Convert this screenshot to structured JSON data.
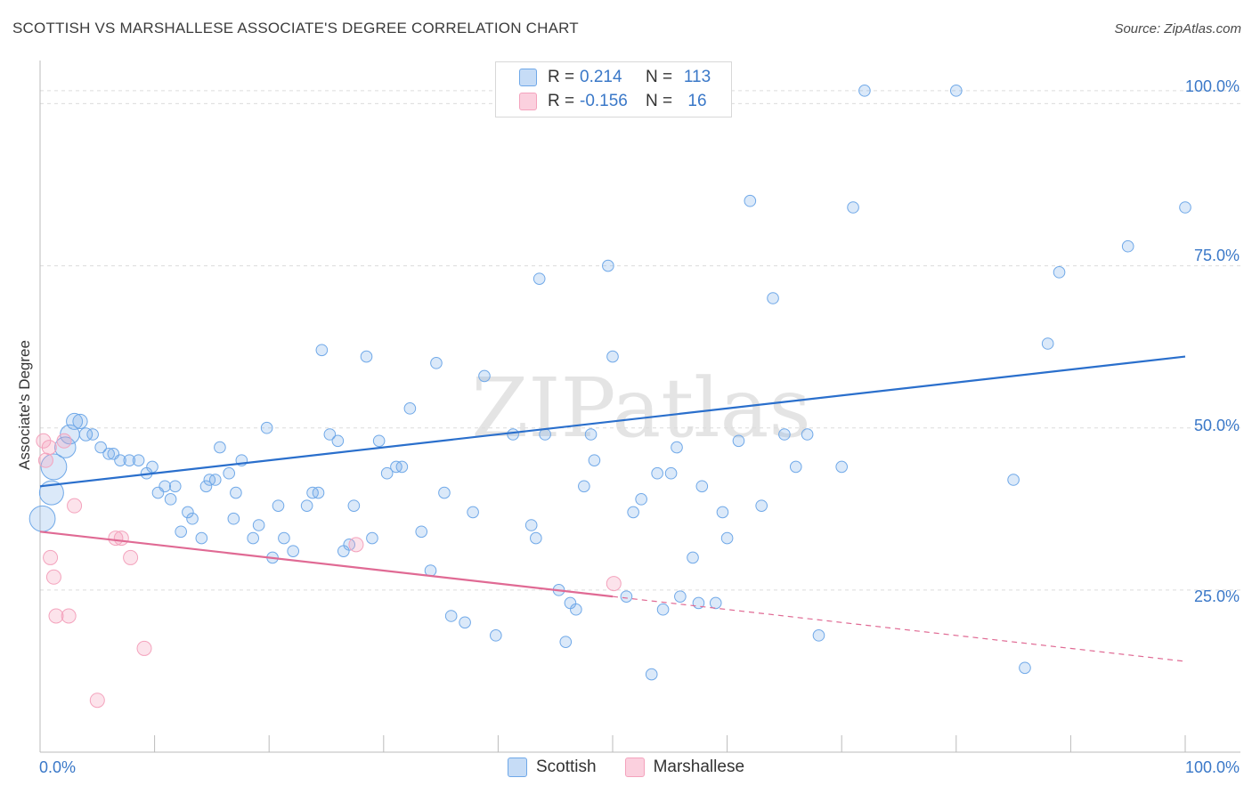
{
  "header": {
    "title": "SCOTTISH VS MARSHALLESE ASSOCIATE'S DEGREE CORRELATION CHART",
    "source": "Source: ZipAtlas.com"
  },
  "watermark": "ZIPatlas",
  "colors": {
    "scottish": "#6fa8e8",
    "scottish_line": "#2a6fcc",
    "marshallese": "#f4a3bd",
    "marshallese_line": "#e06a94",
    "tick_text": "#3a78c8"
  },
  "legend": {
    "rows": [
      {
        "r_label": "R =",
        "r_value": "0.214",
        "n_label": "N =",
        "n_value": "113"
      },
      {
        "r_label": "R =",
        "r_value": "-0.156",
        "n_label": "N =",
        "n_value": "16"
      }
    ]
  },
  "bottom_legend": [
    "Scottish",
    "Marshallese"
  ],
  "chart_data": {
    "type": "scatter",
    "title": "SCOTTISH VS MARSHALLESE ASSOCIATE'S DEGREE CORRELATION CHART",
    "ylabel": "Associate's Degree",
    "xlabel": "",
    "xlim": [
      0,
      100
    ],
    "ylim": [
      0,
      105
    ],
    "x_tick_labels": [
      "0.0%",
      "100.0%"
    ],
    "y_tick_labels": [
      "25.0%",
      "50.0%",
      "75.0%",
      "100.0%"
    ],
    "y_ticks": [
      25,
      50,
      75,
      100
    ],
    "grid": true,
    "legend_position": "top-center",
    "series": [
      {
        "name": "Scottish",
        "r": 0.214,
        "n": 113,
        "trend": {
          "x0": 0,
          "y0": 41,
          "x1": 100,
          "y1": 61
        },
        "points": [
          [
            0.2,
            36,
            1.6
          ],
          [
            1,
            40,
            1.5
          ],
          [
            1.2,
            44,
            1.6
          ],
          [
            2.2,
            47,
            1.3
          ],
          [
            2.6,
            49,
            1.2
          ],
          [
            3,
            51,
            1.0
          ],
          [
            3.5,
            51,
            0.9
          ],
          [
            4,
            49,
            0.8
          ],
          [
            4.6,
            49,
            0.7
          ],
          [
            5.3,
            47,
            0.7
          ],
          [
            6,
            46,
            0.7
          ],
          [
            6.4,
            46,
            0.7
          ],
          [
            7,
            45,
            0.7
          ],
          [
            7.8,
            45,
            0.7
          ],
          [
            8.6,
            45,
            0.7
          ],
          [
            9.3,
            43,
            0.7
          ],
          [
            9.8,
            44,
            0.7
          ],
          [
            10.3,
            40,
            0.7
          ],
          [
            10.9,
            41,
            0.7
          ],
          [
            11.4,
            39,
            0.7
          ],
          [
            11.8,
            41,
            0.7
          ],
          [
            12.3,
            34,
            0.7
          ],
          [
            12.9,
            37,
            0.7
          ],
          [
            13.3,
            36,
            0.7
          ],
          [
            14.5,
            41,
            0.7
          ],
          [
            14.8,
            42,
            0.7
          ],
          [
            15.3,
            42,
            0.7
          ],
          [
            17.1,
            40,
            0.7
          ],
          [
            14.1,
            33,
            0.7
          ],
          [
            15.7,
            47,
            0.7
          ],
          [
            16.5,
            43,
            0.7
          ],
          [
            16.9,
            36,
            0.7
          ],
          [
            17.6,
            45,
            0.7
          ],
          [
            18.6,
            33,
            0.7
          ],
          [
            19.1,
            35,
            0.7
          ],
          [
            19.8,
            50,
            0.7
          ],
          [
            20.3,
            30,
            0.7
          ],
          [
            20.8,
            38,
            0.7
          ],
          [
            21.3,
            33,
            0.7
          ],
          [
            22.1,
            31,
            0.7
          ],
          [
            23.3,
            38,
            0.7
          ],
          [
            23.8,
            40,
            0.7
          ],
          [
            24.3,
            40,
            0.7
          ],
          [
            24.6,
            62,
            0.7
          ],
          [
            25.3,
            49,
            0.7
          ],
          [
            26,
            48,
            0.7
          ],
          [
            26.5,
            31,
            0.7
          ],
          [
            27,
            32,
            0.7
          ],
          [
            27.4,
            38,
            0.7
          ],
          [
            28.5,
            61,
            0.7
          ],
          [
            29,
            33,
            0.7
          ],
          [
            29.6,
            48,
            0.7
          ],
          [
            30.3,
            43,
            0.7
          ],
          [
            31.1,
            44,
            0.7
          ],
          [
            31.6,
            44,
            0.7
          ],
          [
            32.3,
            53,
            0.7
          ],
          [
            33.3,
            34,
            0.7
          ],
          [
            34.1,
            28,
            0.7
          ],
          [
            34.6,
            60,
            0.7
          ],
          [
            35.3,
            40,
            0.7
          ],
          [
            35.9,
            21,
            0.7
          ],
          [
            37.1,
            20,
            0.7
          ],
          [
            37.8,
            37,
            0.7
          ],
          [
            38.8,
            58,
            0.7
          ],
          [
            39.8,
            18,
            0.7
          ],
          [
            41.3,
            49,
            0.7
          ],
          [
            42.9,
            35,
            0.7
          ],
          [
            43.3,
            33,
            0.7
          ],
          [
            43.6,
            73,
            0.7
          ],
          [
            44.1,
            49,
            0.7
          ],
          [
            45.3,
            25,
            0.7
          ],
          [
            45.9,
            17,
            0.7
          ],
          [
            46.3,
            23,
            0.7
          ],
          [
            46.8,
            22,
            0.7
          ],
          [
            47.5,
            41,
            0.7
          ],
          [
            48.1,
            49,
            0.7
          ],
          [
            48.4,
            45,
            0.7
          ],
          [
            49.6,
            75,
            0.7
          ],
          [
            50,
            61,
            0.7
          ],
          [
            51.2,
            24,
            0.7
          ],
          [
            51.8,
            37,
            0.7
          ],
          [
            52.5,
            39,
            0.7
          ],
          [
            53.4,
            12,
            0.7
          ],
          [
            53.9,
            43,
            0.7
          ],
          [
            54.4,
            22,
            0.7
          ],
          [
            55.1,
            43,
            0.7
          ],
          [
            55.6,
            47,
            0.7
          ],
          [
            55.9,
            24,
            0.7
          ],
          [
            57,
            30,
            0.7
          ],
          [
            57.5,
            23,
            0.7
          ],
          [
            57.8,
            41,
            0.7
          ],
          [
            59,
            23,
            0.7
          ],
          [
            59.6,
            37,
            0.7
          ],
          [
            60,
            33,
            0.7
          ],
          [
            61,
            48,
            0.7
          ],
          [
            62,
            85,
            0.7
          ],
          [
            63,
            38,
            0.7
          ],
          [
            64,
            70,
            0.7
          ],
          [
            65,
            49,
            0.7
          ],
          [
            66,
            44,
            0.7
          ],
          [
            67,
            49,
            0.7
          ],
          [
            68,
            18,
            0.7
          ],
          [
            70,
            44,
            0.7
          ],
          [
            71,
            84,
            0.7
          ],
          [
            72,
            102,
            0.7
          ],
          [
            80,
            102,
            0.7
          ],
          [
            85,
            42,
            0.7
          ],
          [
            86,
            13,
            0.7
          ],
          [
            88,
            63,
            0.7
          ],
          [
            89,
            74,
            0.7
          ],
          [
            95,
            78,
            0.7
          ],
          [
            100,
            84,
            0.7
          ]
        ]
      },
      {
        "name": "Marshallese",
        "r": -0.156,
        "n": 16,
        "trend_solid": {
          "x0": 0,
          "y0": 34,
          "x1": 50,
          "y1": 24
        },
        "trend_dashed": {
          "x0": 50,
          "y0": 24,
          "x1": 100,
          "y1": 14
        },
        "points": [
          [
            0.3,
            48
          ],
          [
            0.5,
            45
          ],
          [
            0.8,
            47
          ],
          [
            0.9,
            30
          ],
          [
            1.2,
            27
          ],
          [
            1.4,
            21
          ],
          [
            2.1,
            48
          ],
          [
            2.5,
            21
          ],
          [
            3,
            38
          ],
          [
            5,
            8
          ],
          [
            6.6,
            33
          ],
          [
            7.1,
            33
          ],
          [
            7.9,
            30
          ],
          [
            9.1,
            16
          ],
          [
            27.6,
            32
          ],
          [
            50.1,
            26
          ]
        ]
      }
    ]
  }
}
